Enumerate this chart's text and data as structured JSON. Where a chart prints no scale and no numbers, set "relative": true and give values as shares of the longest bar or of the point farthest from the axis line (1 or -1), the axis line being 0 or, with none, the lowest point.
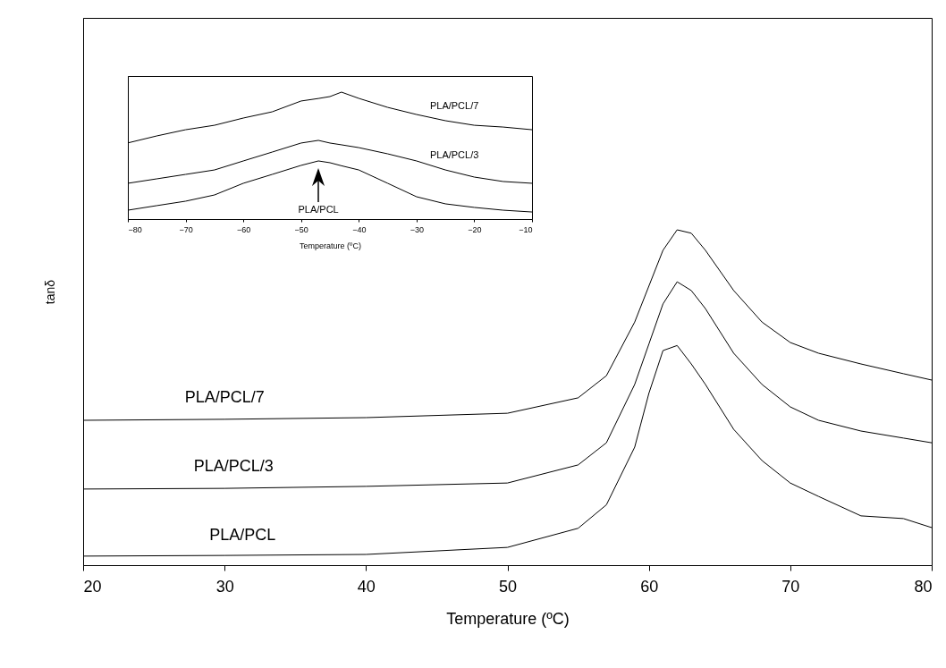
{
  "chart_data": [
    {
      "type": "line",
      "relative": true,
      "xlabel": "Temperature (ºC)",
      "ylabel": "tanδ",
      "xlim": [
        20,
        80
      ],
      "xticks": [
        20,
        30,
        40,
        50,
        60,
        70,
        80
      ],
      "grid": false,
      "marker": "none",
      "line_style": "solid",
      "x": [
        20,
        30,
        40,
        50,
        55,
        57,
        59,
        60,
        61,
        62,
        63,
        64,
        66,
        68,
        70,
        72,
        75,
        78,
        80
      ],
      "series": [
        {
          "name": "PLA/PCL/7",
          "color": "#000000",
          "values": [
            0.432,
            0.435,
            0.44,
            0.453,
            0.499,
            0.565,
            0.725,
            0.832,
            0.939,
            1.0,
            0.99,
            0.939,
            0.819,
            0.725,
            0.664,
            0.632,
            0.6,
            0.571,
            0.552
          ]
        },
        {
          "name": "PLA/PCL/3",
          "color": "#000000",
          "values": [
            0.227,
            0.229,
            0.235,
            0.245,
            0.299,
            0.365,
            0.539,
            0.659,
            0.779,
            0.845,
            0.819,
            0.765,
            0.632,
            0.539,
            0.472,
            0.432,
            0.4,
            0.379,
            0.365
          ]
        },
        {
          "name": "PLA/PCL",
          "color": "#000000",
          "values": [
            0.027,
            0.029,
            0.032,
            0.053,
            0.11,
            0.18,
            0.352,
            0.512,
            0.64,
            0.655,
            0.6,
            0.539,
            0.405,
            0.312,
            0.245,
            0.205,
            0.147,
            0.139,
            0.112
          ]
        }
      ]
    },
    {
      "type": "line",
      "relative": true,
      "xlabel": "Temperature (ºC)",
      "xlim": [
        -80,
        -10
      ],
      "xticks": [
        -80,
        -70,
        -60,
        -50,
        -40,
        -30,
        -20,
        -10
      ],
      "grid": false,
      "marker": "none",
      "line_style": "solid",
      "x": [
        -80,
        -75,
        -70,
        -65,
        -60,
        -55,
        -50,
        -47,
        -45,
        -43,
        -40,
        -35,
        -30,
        -25,
        -20,
        -15,
        -10
      ],
      "series": [
        {
          "name": "PLA/PCL/7",
          "color": "#000000",
          "values": [
            0.6,
            0.655,
            0.704,
            0.739,
            0.796,
            0.845,
            0.93,
            0.95,
            0.965,
            1.0,
            0.951,
            0.88,
            0.824,
            0.775,
            0.739,
            0.725,
            0.704
          ]
        },
        {
          "name": "PLA/PCL/3",
          "color": "#000000",
          "values": [
            0.282,
            0.317,
            0.352,
            0.387,
            0.458,
            0.528,
            0.599,
            0.62,
            0.599,
            0.585,
            0.563,
            0.514,
            0.458,
            0.387,
            0.331,
            0.296,
            0.282
          ]
        },
        {
          "name": "PLA/PCL",
          "color": "#000000",
          "values": [
            0.07,
            0.106,
            0.141,
            0.19,
            0.282,
            0.352,
            0.423,
            0.458,
            0.444,
            0.42,
            0.387,
            0.282,
            0.176,
            0.12,
            0.092,
            0.07,
            0.056
          ]
        }
      ]
    }
  ]
}
